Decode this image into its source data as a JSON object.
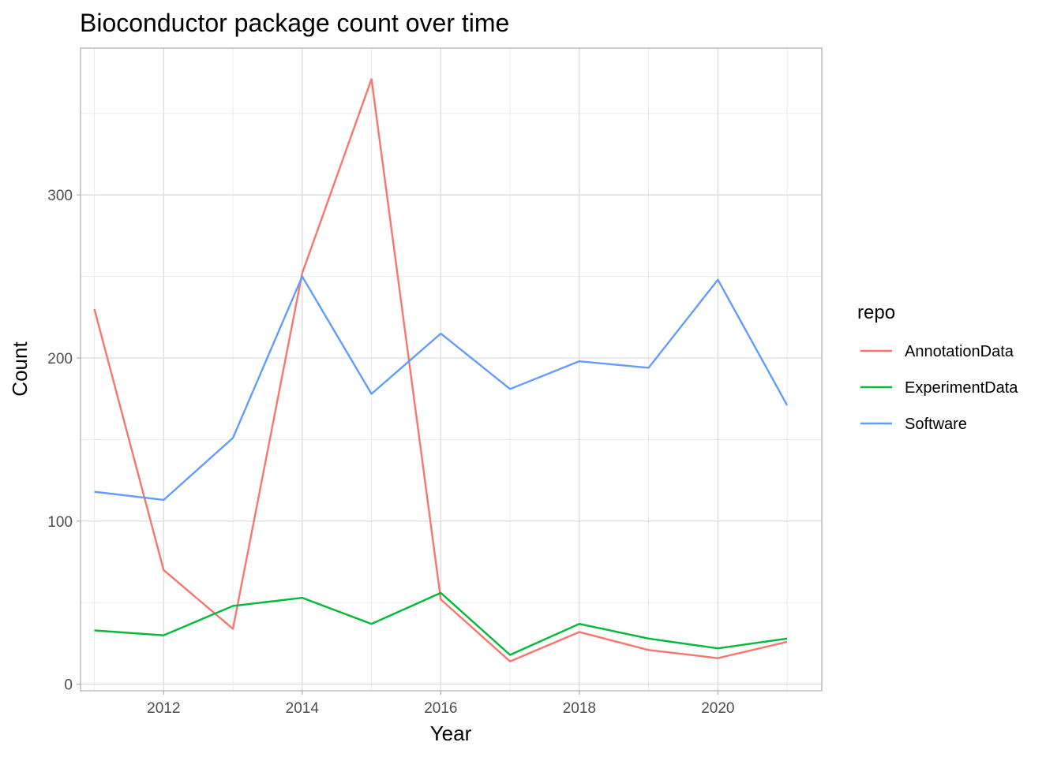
{
  "chart_data": {
    "type": "line",
    "title": "Bioconductor package count over time",
    "xlabel": "Year",
    "ylabel": "Count",
    "x": [
      2011,
      2012,
      2013,
      2014,
      2015,
      2016,
      2017,
      2018,
      2019,
      2020,
      2021
    ],
    "xlim": [
      2010.8,
      2021.5
    ],
    "ylim": [
      -4,
      390
    ],
    "x_ticks": [
      2012,
      2014,
      2016,
      2018,
      2020
    ],
    "y_ticks": [
      0,
      100,
      200,
      300
    ],
    "grid": true,
    "legend": {
      "title": "repo",
      "position": "right"
    },
    "series": [
      {
        "name": "AnnotationData",
        "color": "#F8766D",
        "values": [
          230,
          70,
          34,
          252,
          371,
          52,
          14,
          32,
          21,
          16,
          26
        ]
      },
      {
        "name": "ExperimentData",
        "color": "#00BA38",
        "values": [
          33,
          30,
          48,
          53,
          37,
          56,
          18,
          37,
          28,
          22,
          28
        ]
      },
      {
        "name": "Software",
        "color": "#619CFF",
        "values": [
          118,
          113,
          151,
          250,
          178,
          215,
          181,
          198,
          194,
          248,
          171
        ]
      }
    ]
  }
}
